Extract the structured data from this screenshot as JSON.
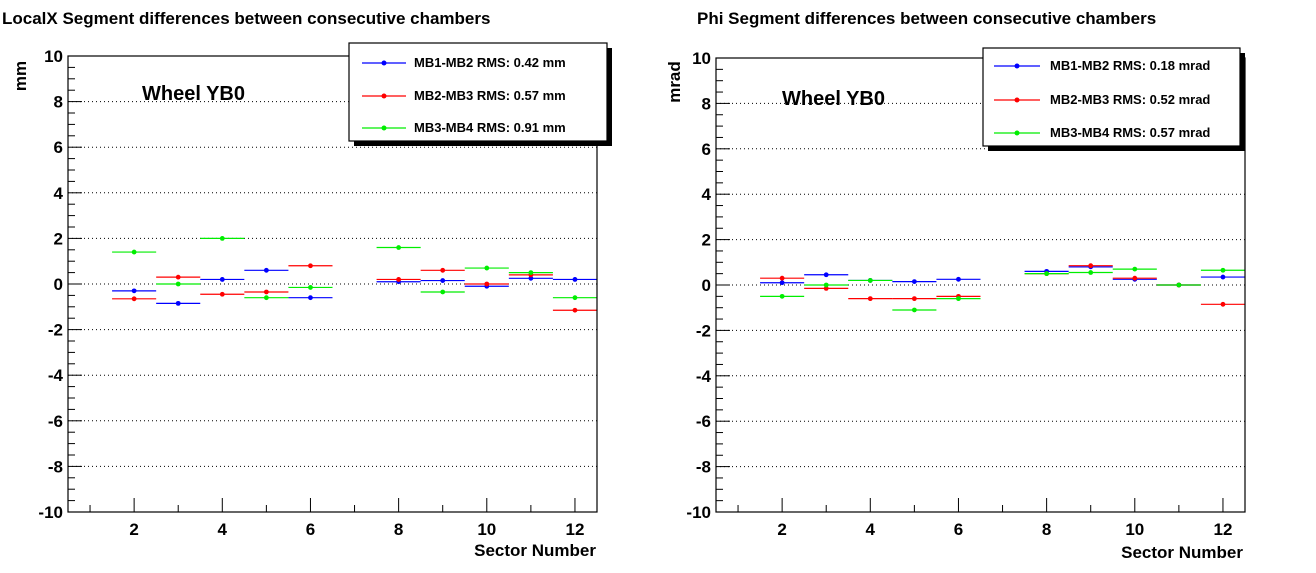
{
  "charts": [
    {
      "title": "LocalX Segment differences between consecutive chambers",
      "ylabel": "mm",
      "xlabel": "Sector Number",
      "annotation": "Wheel YB0",
      "legend": [
        {
          "label": "MB1-MB2 RMS: 0.42 mm"
        },
        {
          "label": "MB2-MB3 RMS: 0.57 mm"
        },
        {
          "label": "MB3-MB4 RMS: 0.91 mm"
        }
      ]
    },
    {
      "title": "Phi Segment differences between consecutive chambers",
      "ylabel": "mrad",
      "xlabel": "Sector Number",
      "annotation": "Wheel YB0",
      "legend": [
        {
          "label": "MB1-MB2 RMS: 0.18 mrad"
        },
        {
          "label": "MB2-MB3 RMS: 0.52 mrad"
        },
        {
          "label": "MB3-MB4 RMS: 0.57 mrad"
        }
      ]
    }
  ],
  "chart_data": [
    {
      "type": "scatter",
      "title": "LocalX Segment differences between consecutive chambers",
      "xlabel": "Sector Number",
      "ylabel": "mm",
      "annotation": "Wheel YB0",
      "xlim": [
        0.5,
        12.5
      ],
      "ylim": [
        -10,
        10
      ],
      "xticks": [
        2,
        4,
        6,
        8,
        10,
        12
      ],
      "yticks": [
        -10,
        -8,
        -6,
        -4,
        -2,
        0,
        2,
        4,
        6,
        8,
        10
      ],
      "grid": "horizontal dotted",
      "legend_position": "top-right",
      "series": [
        {
          "name": "MB1-MB2 RMS: 0.42 mm",
          "color": "#0000ff",
          "x": [
            2,
            3,
            4,
            5,
            6,
            8,
            9,
            10,
            11,
            12
          ],
          "y": [
            -0.3,
            -0.85,
            0.2,
            0.6,
            -0.6,
            0.1,
            0.15,
            -0.1,
            0.25,
            0.2
          ]
        },
        {
          "name": "MB2-MB3 RMS: 0.57 mm",
          "color": "#ff0000",
          "x": [
            2,
            3,
            4,
            5,
            6,
            8,
            9,
            10,
            11,
            12
          ],
          "y": [
            -0.65,
            0.3,
            -0.45,
            -0.35,
            0.8,
            0.2,
            0.6,
            0.0,
            0.4,
            -1.15
          ]
        },
        {
          "name": "MB3-MB4 RMS: 0.91 mm",
          "color": "#00ee00",
          "x": [
            2,
            3,
            4,
            5,
            6,
            8,
            9,
            10,
            11,
            12
          ],
          "y": [
            1.4,
            0.0,
            2.0,
            -0.6,
            -0.15,
            1.6,
            -0.35,
            0.7,
            0.5,
            -0.6
          ]
        }
      ]
    },
    {
      "type": "scatter",
      "title": "Phi Segment differences between consecutive chambers",
      "xlabel": "Sector Number",
      "ylabel": "mrad",
      "annotation": "Wheel YB0",
      "xlim": [
        0.5,
        12.5
      ],
      "ylim": [
        -10,
        10
      ],
      "xticks": [
        2,
        4,
        6,
        8,
        10,
        12
      ],
      "yticks": [
        -10,
        -8,
        -6,
        -4,
        -2,
        0,
        2,
        4,
        6,
        8,
        10
      ],
      "grid": "horizontal dotted",
      "legend_position": "top-right",
      "series": [
        {
          "name": "MB1-MB2 RMS: 0.18 mrad",
          "color": "#0000ff",
          "x": [
            2,
            3,
            4,
            5,
            6,
            8,
            9,
            10,
            11,
            12
          ],
          "y": [
            0.1,
            0.45,
            0.2,
            0.15,
            0.25,
            0.6,
            0.8,
            0.25,
            0.0,
            0.35
          ]
        },
        {
          "name": "MB2-MB3 RMS: 0.52 mrad",
          "color": "#ff0000",
          "x": [
            2,
            3,
            4,
            5,
            6,
            8,
            9,
            10,
            11,
            12
          ],
          "y": [
            0.3,
            -0.15,
            -0.6,
            -0.6,
            -0.5,
            0.5,
            0.85,
            0.3,
            0.0,
            -0.85
          ]
        },
        {
          "name": "MB3-MB4 RMS: 0.57 mrad",
          "color": "#00ee00",
          "x": [
            2,
            3,
            4,
            5,
            6,
            8,
            9,
            10,
            11,
            12
          ],
          "y": [
            -0.5,
            0.0,
            0.2,
            -1.1,
            -0.6,
            0.5,
            0.55,
            0.7,
            0.0,
            0.65
          ]
        }
      ]
    }
  ]
}
